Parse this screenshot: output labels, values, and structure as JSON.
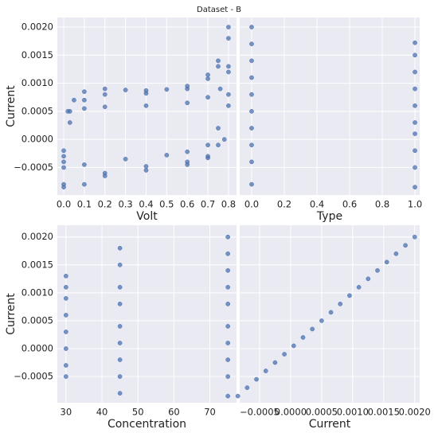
{
  "title": "Dataset - B",
  "chart_data": [
    {
      "type": "scatter",
      "xlabel": "Volt",
      "ylabel": "Current",
      "color": "#4c72b0",
      "grid": true,
      "x": [
        0.0,
        0.02,
        0.05,
        0.1,
        0.2,
        0.3,
        0.4,
        0.5,
        0.6,
        0.7,
        0.75,
        0.8,
        0.0,
        0.03,
        0.1,
        0.2,
        0.4,
        0.6,
        0.7,
        0.75,
        0.8,
        0.0,
        0.03,
        0.1,
        0.2,
        0.4,
        0.6,
        0.7,
        0.76,
        0.8,
        0.0,
        0.1,
        0.3,
        0.5,
        0.6,
        0.7,
        0.75,
        0.8,
        0.0,
        0.1,
        0.2,
        0.4,
        0.6,
        0.7,
        0.75,
        0.8,
        0.0,
        0.2,
        0.4,
        0.6,
        0.7,
        0.78,
        0.8
      ],
      "values": [
        -0.0002,
        0.0005,
        0.0007,
        0.00085,
        0.0009,
        0.00088,
        0.00087,
        0.00089,
        0.00095,
        0.00115,
        0.0014,
        0.002,
        -0.0003,
        0.0005,
        0.0007,
        0.0008,
        0.00082,
        0.0009,
        0.00108,
        0.0013,
        0.0018,
        -0.0004,
        0.0003,
        0.00055,
        0.00058,
        0.0006,
        0.00065,
        0.00075,
        0.0009,
        0.0013,
        -0.0005,
        -0.00045,
        -0.00035,
        -0.00028,
        -0.00022,
        -0.0001,
        0.0002,
        0.0012,
        -0.00085,
        -0.0008,
        -0.0006,
        -0.00048,
        -0.0004,
        -0.0003,
        -0.0001,
        0.0008,
        -0.0008,
        -0.00065,
        -0.00055,
        -0.00045,
        -0.00033,
        0.0,
        0.0006
      ],
      "xlim": [
        -0.031,
        0.839
      ],
      "ylim": [
        -0.00099,
        0.00217
      ],
      "xticks": [
        {
          "value": 0,
          "label": "0.0"
        },
        0.1,
        0.2,
        0.3,
        0.4,
        0.5,
        0.6,
        0.7,
        0.8
      ],
      "yticks": [
        {
          "value": -0.0005,
          "label": "−0.0005"
        },
        {
          "value": 0,
          "label": "0.0000"
        },
        {
          "value": 0.0005,
          "label": "0.0005"
        },
        {
          "value": 0.001,
          "label": "0.0010"
        },
        {
          "value": 0.0015,
          "label": "0.0015"
        },
        {
          "value": 0.002,
          "label": "0.0020"
        }
      ],
      "ytick_labels": true
    },
    {
      "type": "scatter",
      "xlabel": "Type",
      "color": "#4c72b0",
      "grid": true,
      "x": [
        0,
        0,
        0,
        0,
        0,
        0,
        0,
        0,
        0,
        0,
        1,
        1,
        1,
        1,
        1,
        1,
        1,
        1,
        1,
        1
      ],
      "values": [
        -0.0008,
        -0.0004,
        -0.0001,
        0.0002,
        0.0005,
        0.0008,
        0.0011,
        0.0014,
        0.0017,
        0.002,
        -0.00085,
        -0.0005,
        -0.0002,
        0.0001,
        0.0003,
        0.0006,
        0.0009,
        0.0012,
        0.0015,
        0.00172
      ],
      "xlim": [
        -0.073,
        1.029
      ],
      "ylim": [
        -0.00099,
        0.00217
      ],
      "xticks": [
        {
          "value": 0,
          "label": "0.0"
        },
        0.2,
        0.4,
        0.6,
        0.8,
        {
          "value": 1,
          "label": "1.0"
        }
      ],
      "yticks": [
        -0.0005,
        0,
        0.0005,
        0.001,
        0.0015,
        0.002
      ],
      "ytick_labels": false
    },
    {
      "type": "scatter",
      "xlabel": "Concentration",
      "ylabel": "Current",
      "color": "#4c72b0",
      "grid": true,
      "x": [
        30,
        30,
        30,
        30,
        30,
        30,
        30,
        30,
        45,
        45,
        45,
        45,
        45,
        45,
        45,
        45,
        45,
        75,
        75,
        75,
        75,
        75,
        75,
        75,
        75,
        75,
        75
      ],
      "values": [
        -0.0005,
        -0.0003,
        0.0,
        0.0003,
        0.0006,
        0.0009,
        0.0011,
        0.0013,
        -0.0008,
        -0.0005,
        -0.0002,
        0.0001,
        0.0004,
        0.0008,
        0.0011,
        0.0015,
        0.0018,
        -0.00085,
        -0.0005,
        -0.0002,
        0.0001,
        0.0004,
        0.0008,
        0.0011,
        0.0014,
        0.0017,
        0.002
      ],
      "xlim": [
        27.6,
        77.4
      ],
      "ylim": [
        -0.00097,
        0.00221
      ],
      "xticks": [
        30,
        40,
        50,
        60,
        70
      ],
      "yticks": [
        {
          "value": -0.0005,
          "label": "−0.0005"
        },
        {
          "value": 0,
          "label": "0.0000"
        },
        {
          "value": 0.0005,
          "label": "0.0005"
        },
        {
          "value": 0.001,
          "label": "0.0010"
        },
        {
          "value": 0.0015,
          "label": "0.0015"
        },
        {
          "value": 0.002,
          "label": "0.0020"
        }
      ],
      "ytick_labels": true
    },
    {
      "type": "scatter",
      "xlabel": "Current",
      "color": "#4c72b0",
      "grid": true,
      "x": [
        -0.00085,
        -0.0007,
        -0.00055,
        -0.0004,
        -0.00025,
        -0.0001,
        5e-05,
        0.0002,
        0.00035,
        0.0005,
        0.00065,
        0.0008,
        0.00095,
        0.0011,
        0.00125,
        0.0014,
        0.00155,
        0.0017,
        0.00185,
        0.002
      ],
      "values": [
        -0.00085,
        -0.0007,
        -0.00055,
        -0.0004,
        -0.00025,
        -0.0001,
        5e-05,
        0.0002,
        0.00035,
        0.0005,
        0.00065,
        0.0008,
        0.00095,
        0.0011,
        0.00125,
        0.0014,
        0.00155,
        0.0017,
        0.00185,
        0.002
      ],
      "xlim": [
        -0.00082,
        0.00208
      ],
      "ylim": [
        -0.00097,
        0.00221
      ],
      "xticks": [
        {
          "value": -0.0005,
          "label": "−0.0005"
        },
        {
          "value": 0,
          "label": "0.0000"
        },
        {
          "value": 0.0005,
          "label": "0.0005"
        },
        {
          "value": 0.001,
          "label": "0.0010"
        },
        {
          "value": 0.0015,
          "label": "0.0015"
        },
        {
          "value": 0.002,
          "label": "0.0020"
        }
      ],
      "yticks": [
        -0.0005,
        0,
        0.0005,
        0.001,
        0.0015,
        0.002
      ],
      "ytick_labels": false
    }
  ]
}
